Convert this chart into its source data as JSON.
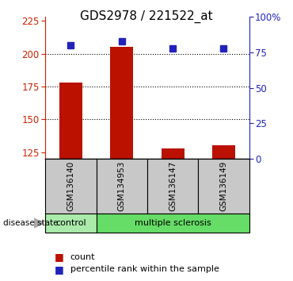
{
  "title": "GDS2978 / 221522_at",
  "samples": [
    "GSM136140",
    "GSM134953",
    "GSM136147",
    "GSM136149"
  ],
  "counts": [
    178,
    205,
    128,
    130
  ],
  "percentiles": [
    80,
    83,
    78,
    78
  ],
  "ylim_left": [
    120,
    228
  ],
  "ylim_right": [
    0,
    100
  ],
  "yticks_left": [
    125,
    150,
    175,
    200,
    225
  ],
  "yticks_right": [
    0,
    25,
    50,
    75,
    100
  ],
  "ytick_right_labels": [
    "0",
    "25",
    "50",
    "75",
    "100%"
  ],
  "bar_color": "#BB1100",
  "square_color": "#2222BB",
  "dotted_line_color": "#000000",
  "disease_state_colors": [
    "#AAEAAA",
    "#66DD66"
  ],
  "label_box_color": "#C8C8C8",
  "bar_width": 0.45,
  "title_fontsize": 11,
  "tick_fontsize": 8.5,
  "sample_fontsize": 7.5,
  "disease_fontsize": 8,
  "legend_fontsize": 8
}
